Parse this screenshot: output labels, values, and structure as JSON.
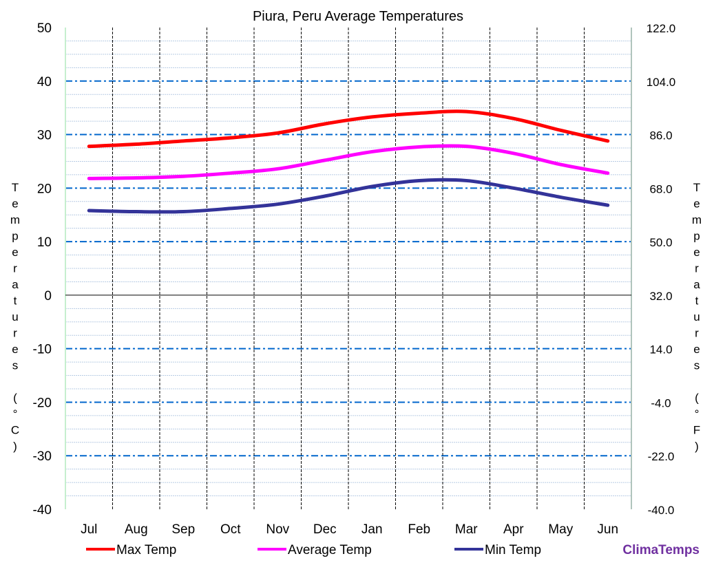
{
  "chart_data": {
    "type": "line",
    "title": "Piura, Peru Average Temperatures",
    "ylabel_left": "Temperatures (°C)",
    "ylabel_right": "Temperatures (°F)",
    "categories": [
      "Jul",
      "Aug",
      "Sep",
      "Oct",
      "Nov",
      "Dec",
      "Jan",
      "Feb",
      "Mar",
      "Apr",
      "May",
      "Jun"
    ],
    "ylim": [
      -40,
      50
    ],
    "yticks": [
      50,
      40,
      30,
      20,
      10,
      0,
      -10,
      -20,
      -30,
      -40
    ],
    "ylim_right": [
      -40.0,
      122.0
    ],
    "yticks_right": [
      "122.0",
      "104.0",
      "86.0",
      "68.0",
      "50.0",
      "32.0",
      "14.0",
      "-4.0",
      "-22.0",
      "-40.0"
    ],
    "grid": true,
    "legend_position": "bottom",
    "series": [
      {
        "name": "Max Temp",
        "color": "#ff0000",
        "values": [
          27.8,
          28.2,
          28.8,
          29.4,
          30.3,
          32.0,
          33.3,
          34.0,
          34.3,
          33.0,
          30.8,
          28.8
        ]
      },
      {
        "name": "Average Temp",
        "color": "#ff00ff",
        "values": [
          21.8,
          21.9,
          22.2,
          22.8,
          23.6,
          25.2,
          26.8,
          27.7,
          27.8,
          26.5,
          24.4,
          22.8
        ]
      },
      {
        "name": "Min Temp",
        "color": "#333399",
        "values": [
          15.8,
          15.6,
          15.6,
          16.2,
          17.0,
          18.5,
          20.3,
          21.4,
          21.4,
          20.0,
          18.3,
          16.8
        ]
      }
    ]
  },
  "brand": {
    "text": "ClimaTemps",
    "color": "#7030a0"
  }
}
